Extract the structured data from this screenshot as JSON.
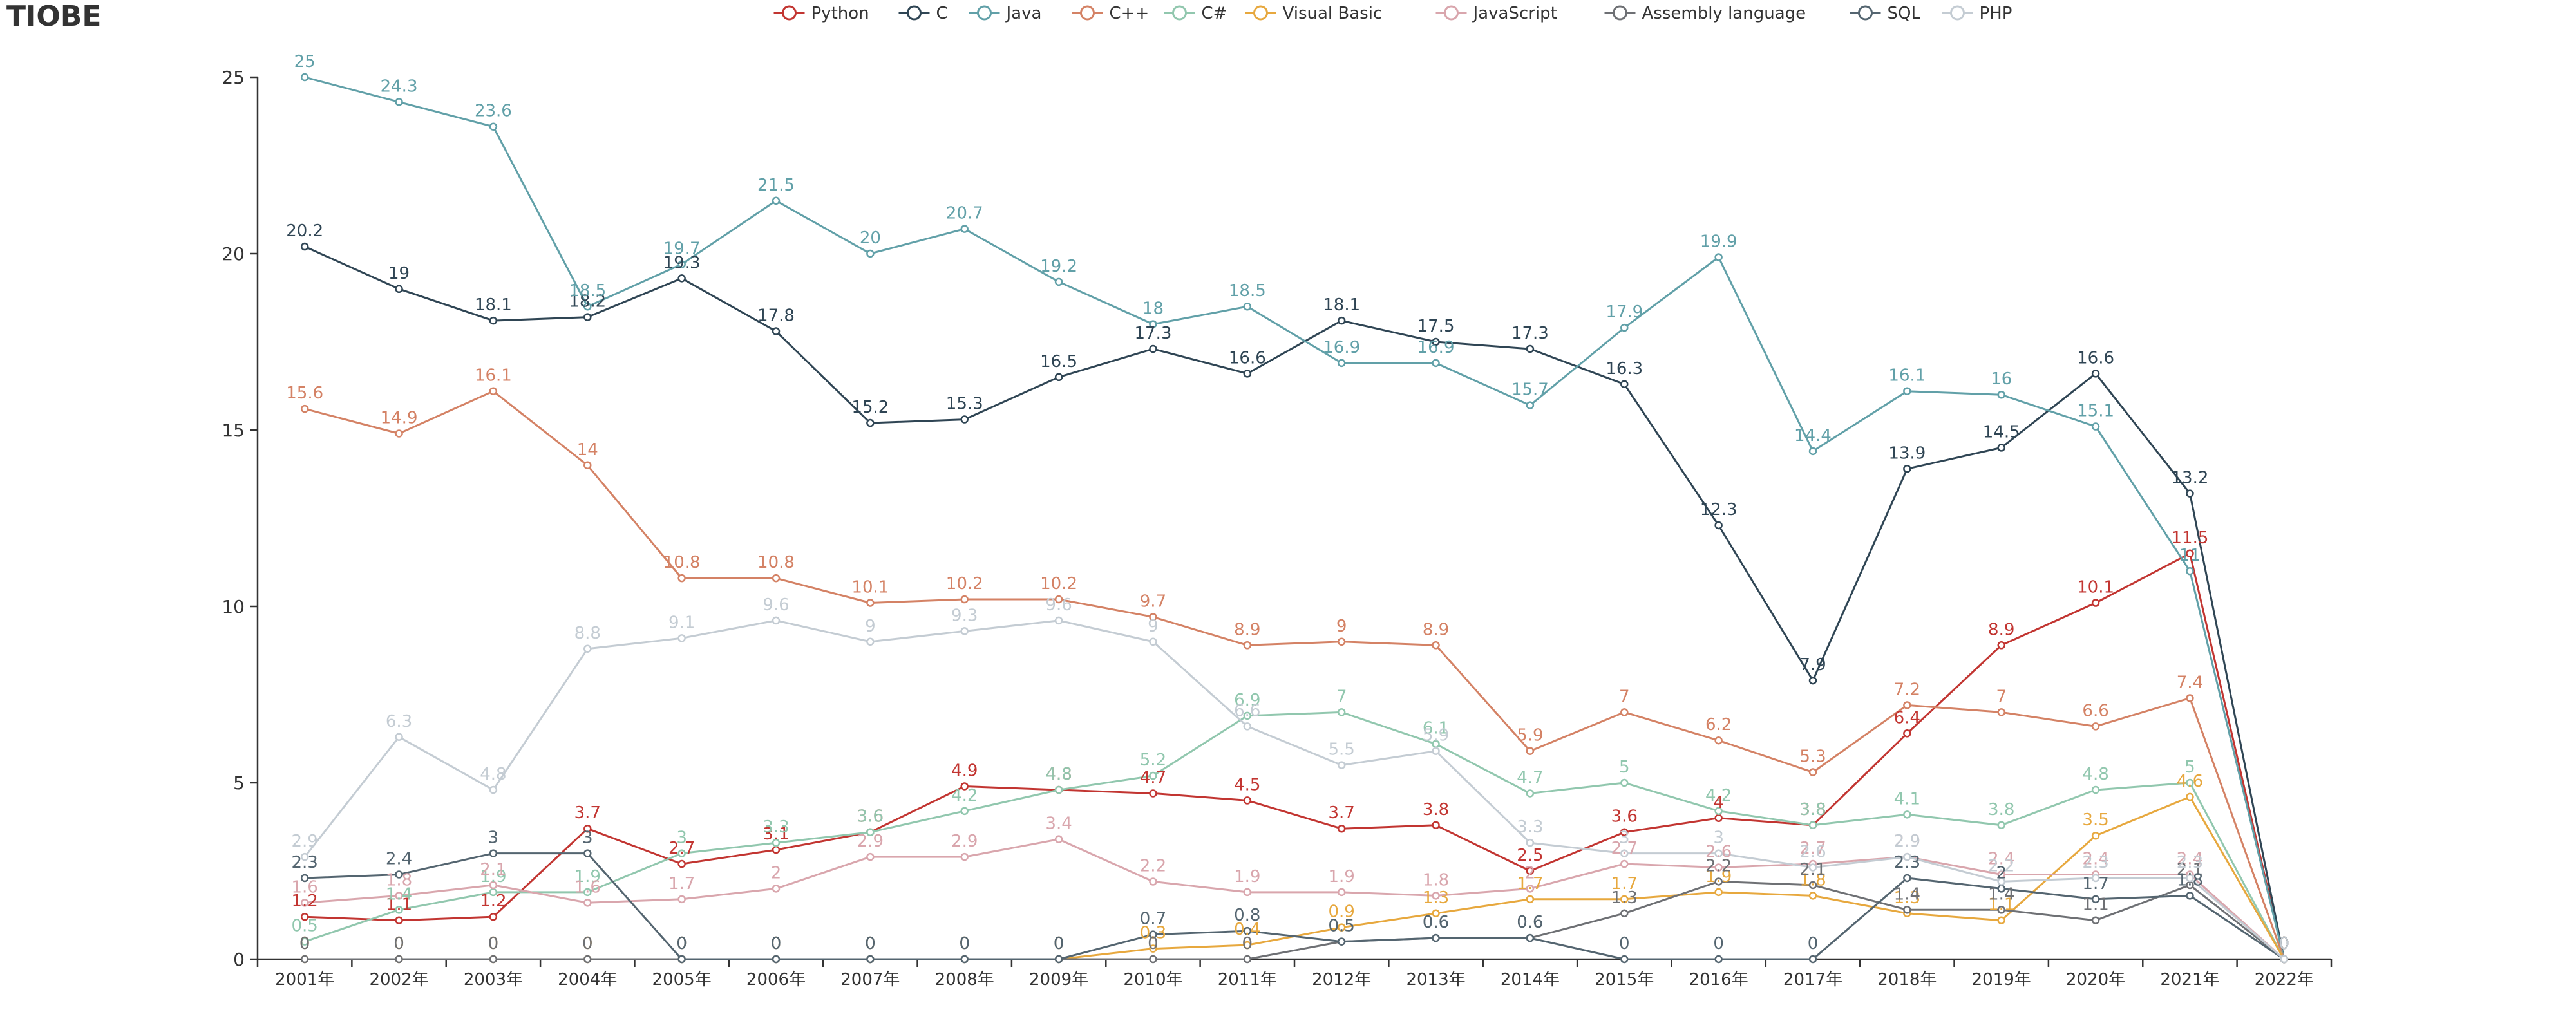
{
  "chart_data": {
    "type": "line",
    "title": "TIOBE",
    "xlabel": "",
    "ylabel": "",
    "ylim": [
      0,
      25
    ],
    "yticks": [
      0,
      5,
      10,
      15,
      20,
      25
    ],
    "grid": false,
    "legend_position": "top",
    "categories": [
      "2001年",
      "2002年",
      "2003年",
      "2004年",
      "2005年",
      "2006年",
      "2007年",
      "2008年",
      "2009年",
      "2010年",
      "2011年",
      "2012年",
      "2013年",
      "2014年",
      "2015年",
      "2016年",
      "2017年",
      "2018年",
      "2019年",
      "2020年",
      "2021年",
      "2022年"
    ],
    "series": [
      {
        "name": "Python",
        "color": "#c23531",
        "values": [
          1.2,
          1.1,
          1.2,
          3.7,
          2.7,
          3.1,
          3.6,
          4.9,
          4.8,
          4.7,
          4.5,
          3.7,
          3.8,
          2.5,
          3.6,
          4,
          3.8,
          6.4,
          8.9,
          10.1,
          11.5,
          0
        ]
      },
      {
        "name": "C",
        "color": "#2f4554",
        "values": [
          20.2,
          19,
          18.1,
          18.2,
          19.3,
          17.8,
          15.2,
          15.3,
          16.5,
          17.3,
          16.6,
          18.1,
          17.5,
          17.3,
          16.3,
          12.3,
          7.9,
          13.9,
          14.5,
          16.6,
          13.2,
          0
        ]
      },
      {
        "name": "Java",
        "color": "#61a0a8",
        "values": [
          25,
          24.3,
          23.6,
          18.5,
          19.7,
          21.5,
          20,
          20.7,
          19.2,
          18,
          18.5,
          16.9,
          16.9,
          15.7,
          17.9,
          19.9,
          14.4,
          16.1,
          16,
          15.1,
          11,
          0
        ]
      },
      {
        "name": "C++",
        "color": "#d48265",
        "values": [
          15.6,
          14.9,
          16.1,
          14,
          10.8,
          10.8,
          10.1,
          10.2,
          10.2,
          9.7,
          8.9,
          9,
          8.9,
          5.9,
          7,
          6.2,
          5.3,
          7.2,
          7,
          6.6,
          7.4,
          0
        ]
      },
      {
        "name": "C#",
        "color": "#91c7ae",
        "values": [
          0.5,
          1.4,
          1.9,
          1.9,
          3,
          3.3,
          3.6,
          4.2,
          4.8,
          5.2,
          6.9,
          7,
          6.1,
          4.7,
          5,
          4.2,
          3.8,
          4.1,
          3.8,
          4.8,
          5,
          0
        ]
      },
      {
        "name": "Visual Basic",
        "color": "#e7a83e",
        "values": [
          0,
          0,
          0,
          0,
          0,
          0,
          0,
          0,
          0,
          0.3,
          0.4,
          0.9,
          1.3,
          1.7,
          1.7,
          1.9,
          1.8,
          1.3,
          1.1,
          3.5,
          4.6,
          0
        ]
      },
      {
        "name": "JavaScript",
        "color": "#d9a6ad",
        "values": [
          1.6,
          1.8,
          2.1,
          1.6,
          1.7,
          2,
          2.9,
          2.9,
          3.4,
          2.2,
          1.9,
          1.9,
          1.8,
          2,
          2.7,
          2.6,
          2.7,
          2.9,
          2.4,
          2.4,
          2.4,
          0
        ]
      },
      {
        "name": "Assembly language",
        "color": "#6e7074",
        "values": [
          0,
          0,
          0,
          0,
          0,
          0,
          0,
          0,
          0,
          0,
          0,
          0.5,
          0.6,
          0.6,
          1.3,
          2.2,
          2.1,
          1.4,
          1.4,
          1.1,
          2.1,
          0
        ]
      },
      {
        "name": "SQL",
        "color": "#546570",
        "values": [
          2.3,
          2.4,
          3,
          3,
          0,
          0,
          0,
          0,
          0,
          0.7,
          0.8,
          0.5,
          0.6,
          0.6,
          0,
          0,
          0,
          2.3,
          2,
          1.7,
          1.8,
          0
        ]
      },
      {
        "name": "PHP",
        "color": "#c4ccd3",
        "values": [
          2.9,
          6.3,
          4.8,
          8.8,
          9.1,
          9.6,
          9,
          9.3,
          9.6,
          9,
          6.6,
          5.5,
          5.9,
          3.3,
          3,
          3,
          2.6,
          2.9,
          2.2,
          2.3,
          2.3,
          0
        ]
      }
    ]
  }
}
